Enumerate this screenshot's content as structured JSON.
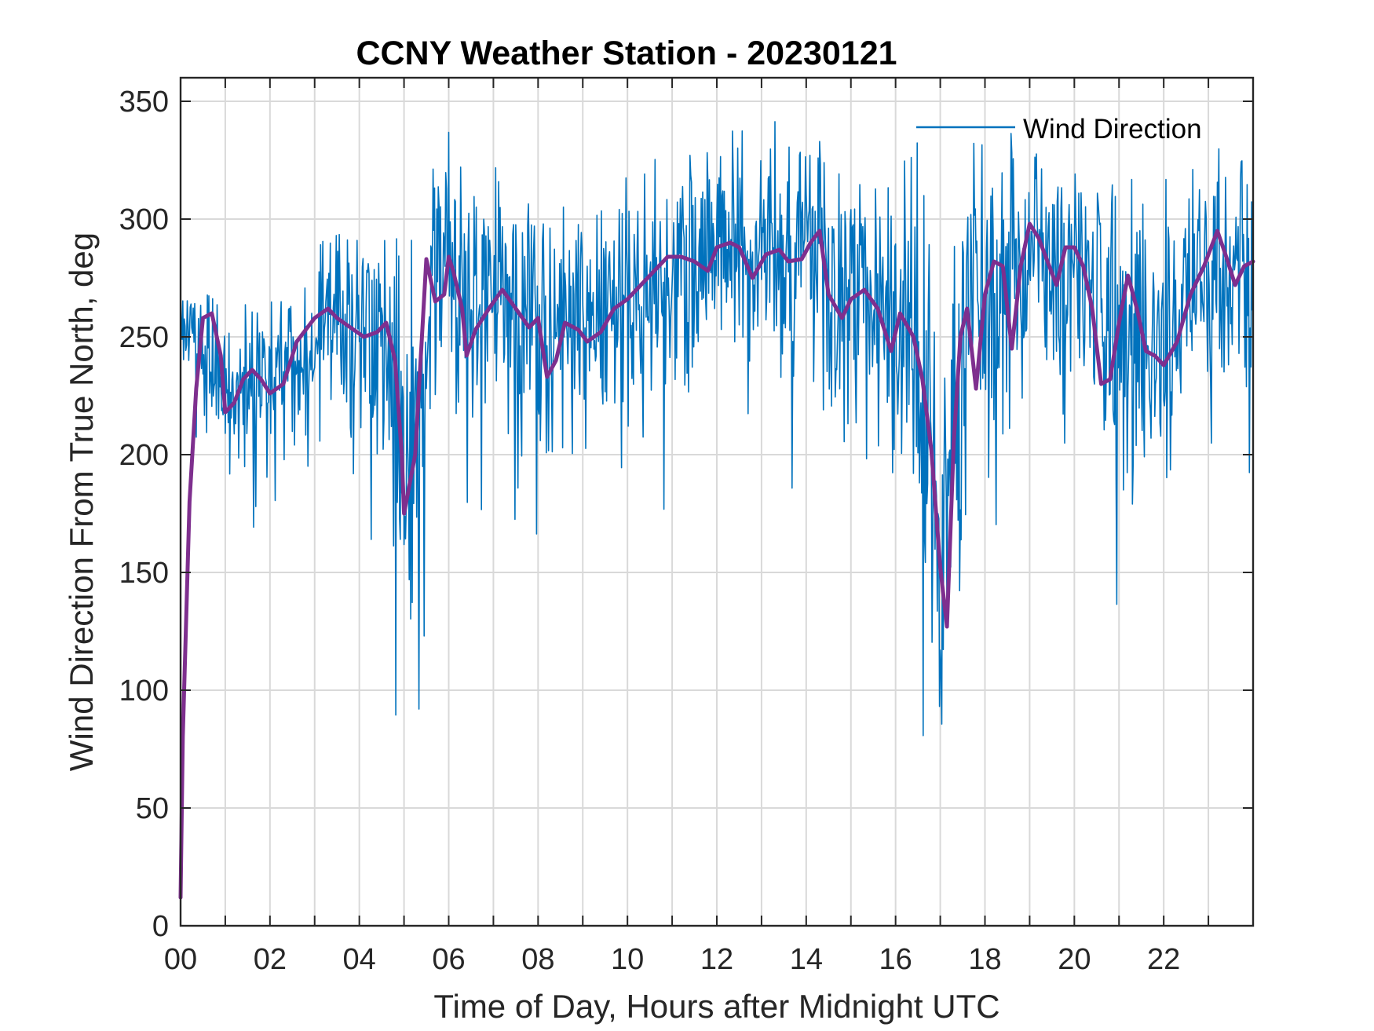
{
  "chart_data": {
    "type": "line",
    "title": "CCNY Weather Station - 20230121",
    "xlabel": "Time of Day, Hours after Midnight UTC",
    "ylabel": "Wind Direction From True North, deg",
    "xlim": [
      0,
      24
    ],
    "ylim": [
      0,
      360
    ],
    "xticks": [
      0,
      2,
      4,
      6,
      8,
      10,
      12,
      14,
      16,
      18,
      20,
      22
    ],
    "xtick_labels": [
      "00",
      "02",
      "04",
      "06",
      "08",
      "10",
      "12",
      "14",
      "16",
      "18",
      "20",
      "22"
    ],
    "yticks": [
      0,
      50,
      100,
      150,
      200,
      250,
      300,
      350
    ],
    "ytick_labels": [
      "0",
      "50",
      "100",
      "150",
      "200",
      "250",
      "300",
      "350"
    ],
    "grid": true,
    "legend": {
      "location": "top-right",
      "entries": [
        "Wind Direction"
      ]
    },
    "series": [
      {
        "name": "Wind Direction",
        "color": "#0072BD",
        "kind": "raw",
        "envelope": {
          "x": [
            0,
            0.3,
            0.6,
            1.0,
            1.5,
            2.0,
            2.5,
            3.0,
            3.5,
            4.0,
            4.5,
            4.8,
            5.0,
            5.3,
            5.6,
            6.0,
            6.5,
            7.0,
            7.5,
            8.0,
            8.5,
            9.0,
            9.5,
            10.0,
            10.5,
            11.0,
            11.5,
            12.0,
            12.5,
            13.0,
            13.5,
            14.0,
            14.5,
            15.0,
            15.5,
            16.0,
            16.5,
            16.8,
            17.0,
            17.3,
            17.6,
            18.0,
            18.5,
            19.0,
            19.5,
            20.0,
            20.5,
            21.0,
            21.5,
            22.0,
            22.5,
            23.0,
            23.5,
            24.0
          ],
          "mean": [
            255,
            258,
            240,
            225,
            232,
            236,
            232,
            248,
            258,
            252,
            248,
            232,
            200,
            215,
            268,
            275,
            262,
            268,
            262,
            250,
            252,
            256,
            262,
            268,
            272,
            278,
            282,
            282,
            285,
            285,
            282,
            285,
            280,
            268,
            262,
            258,
            252,
            212,
            160,
            202,
            250,
            262,
            272,
            282,
            276,
            280,
            272,
            248,
            255,
            248,
            262,
            282,
            278,
            282
          ],
          "spread": [
            18,
            22,
            30,
            30,
            28,
            28,
            30,
            32,
            36,
            38,
            42,
            60,
            80,
            70,
            50,
            48,
            42,
            42,
            45,
            48,
            48,
            45,
            42,
            42,
            42,
            42,
            42,
            42,
            45,
            45,
            48,
            48,
            50,
            55,
            58,
            60,
            62,
            80,
            95,
            80,
            62,
            55,
            48,
            45,
            45,
            45,
            50,
            55,
            52,
            50,
            45,
            42,
            40,
            40
          ]
        }
      },
      {
        "name": "",
        "color": "#7E2F8E",
        "kind": "smoothed",
        "x": [
          0,
          0.05,
          0.2,
          0.35,
          0.5,
          0.7,
          0.9,
          1.0,
          1.2,
          1.4,
          1.6,
          1.8,
          2.0,
          2.3,
          2.6,
          3.0,
          3.3,
          3.5,
          3.8,
          4.1,
          4.4,
          4.6,
          4.8,
          4.95,
          5.0,
          5.1,
          5.25,
          5.4,
          5.5,
          5.7,
          5.9,
          6.0,
          6.1,
          6.3,
          6.4,
          6.6,
          6.9,
          7.2,
          7.5,
          7.8,
          8.0,
          8.2,
          8.4,
          8.6,
          8.9,
          9.1,
          9.4,
          9.7,
          10.0,
          10.3,
          10.6,
          10.9,
          11.2,
          11.5,
          11.8,
          12.0,
          12.3,
          12.5,
          12.8,
          13.1,
          13.4,
          13.6,
          13.9,
          14.1,
          14.3,
          14.5,
          14.8,
          15.0,
          15.3,
          15.6,
          15.9,
          16.1,
          16.4,
          16.6,
          16.8,
          17.0,
          17.15,
          17.3,
          17.45,
          17.6,
          17.8,
          18.0,
          18.2,
          18.4,
          18.6,
          18.8,
          19.0,
          19.2,
          19.4,
          19.6,
          19.8,
          20.0,
          20.2,
          20.4,
          20.6,
          20.8,
          21.0,
          21.2,
          21.4,
          21.6,
          21.8,
          22.0,
          22.3,
          22.6,
          22.9,
          23.2,
          23.4,
          23.6,
          23.8,
          24.0
        ],
        "y": [
          12,
          80,
          180,
          228,
          258,
          260,
          242,
          218,
          222,
          232,
          236,
          232,
          226,
          230,
          248,
          258,
          262,
          258,
          254,
          250,
          252,
          256,
          240,
          200,
          175,
          185,
          200,
          250,
          283,
          265,
          268,
          284,
          278,
          262,
          242,
          253,
          262,
          270,
          262,
          254,
          258,
          233,
          240,
          256,
          253,
          248,
          252,
          262,
          266,
          272,
          278,
          284,
          284,
          282,
          278,
          288,
          290,
          288,
          275,
          285,
          287,
          282,
          283,
          290,
          295,
          268,
          258,
          266,
          270,
          262,
          244,
          260,
          250,
          232,
          202,
          152,
          127,
          205,
          250,
          262,
          228,
          268,
          282,
          280,
          245,
          280,
          298,
          292,
          282,
          272,
          288,
          288,
          280,
          262,
          230,
          232,
          256,
          276,
          262,
          244,
          242,
          238,
          248,
          268,
          280,
          295,
          284,
          272,
          280,
          282
        ]
      }
    ]
  }
}
